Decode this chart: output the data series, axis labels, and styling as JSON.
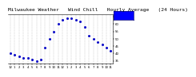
{
  "title": "Milwaukee Weather   Wind Chill   Hourly Average   (24 Hours)",
  "x_labels": [
    "12",
    "1",
    "2",
    "3",
    "4",
    "5",
    "6",
    "7",
    "8",
    "9",
    "10",
    "11",
    "12",
    "1",
    "2",
    "3",
    "4",
    "5",
    "6",
    "7",
    "8",
    "9",
    "10",
    "11"
  ],
  "hours": [
    0,
    1,
    2,
    3,
    4,
    5,
    6,
    7,
    8,
    9,
    10,
    11,
    12,
    13,
    14,
    15,
    16,
    17,
    18,
    19,
    20,
    21,
    22,
    23
  ],
  "wind_chill": [
    40,
    39,
    38,
    37,
    37,
    36,
    35,
    36,
    44,
    50,
    55,
    60,
    63,
    64,
    64,
    63,
    62,
    58,
    52,
    50,
    48,
    46,
    44,
    42
  ],
  "line_color": "#0000cc",
  "bg_color": "#ffffff",
  "plot_bg": "#ffffff",
  "grid_color": "#aaaaaa",
  "ylim": [
    33,
    67
  ],
  "yticks": [
    35,
    40,
    45,
    50,
    55,
    60,
    65
  ],
  "legend_color": "#0000ff",
  "title_fontsize": 4.5
}
